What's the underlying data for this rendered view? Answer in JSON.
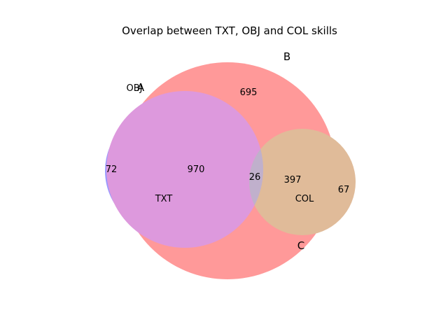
{
  "title": "Overlap between TXT, OBJ and COL skills",
  "sets": {
    "A": {
      "letter": "A",
      "name": "OBJ",
      "color": "#0000ff"
    },
    "B": {
      "letter": "B",
      "name": "TXT",
      "color": "#ff0000"
    },
    "C": {
      "letter": "C",
      "name": "COL",
      "color": "#008000"
    }
  },
  "regions": {
    "A_only": "72",
    "B_only": "695",
    "C_only": "67",
    "A_and_B": "970",
    "A_and_C": "",
    "B_and_C": "397",
    "A_B_C": "26"
  },
  "colors": {
    "A_region": "#9999ff",
    "B_region": "#ff9999",
    "C_region": "#99cc99",
    "AB_region": "#dd99dd",
    "BC_region": "#e0bb99",
    "ABC_region": "#c0b0cc"
  }
}
